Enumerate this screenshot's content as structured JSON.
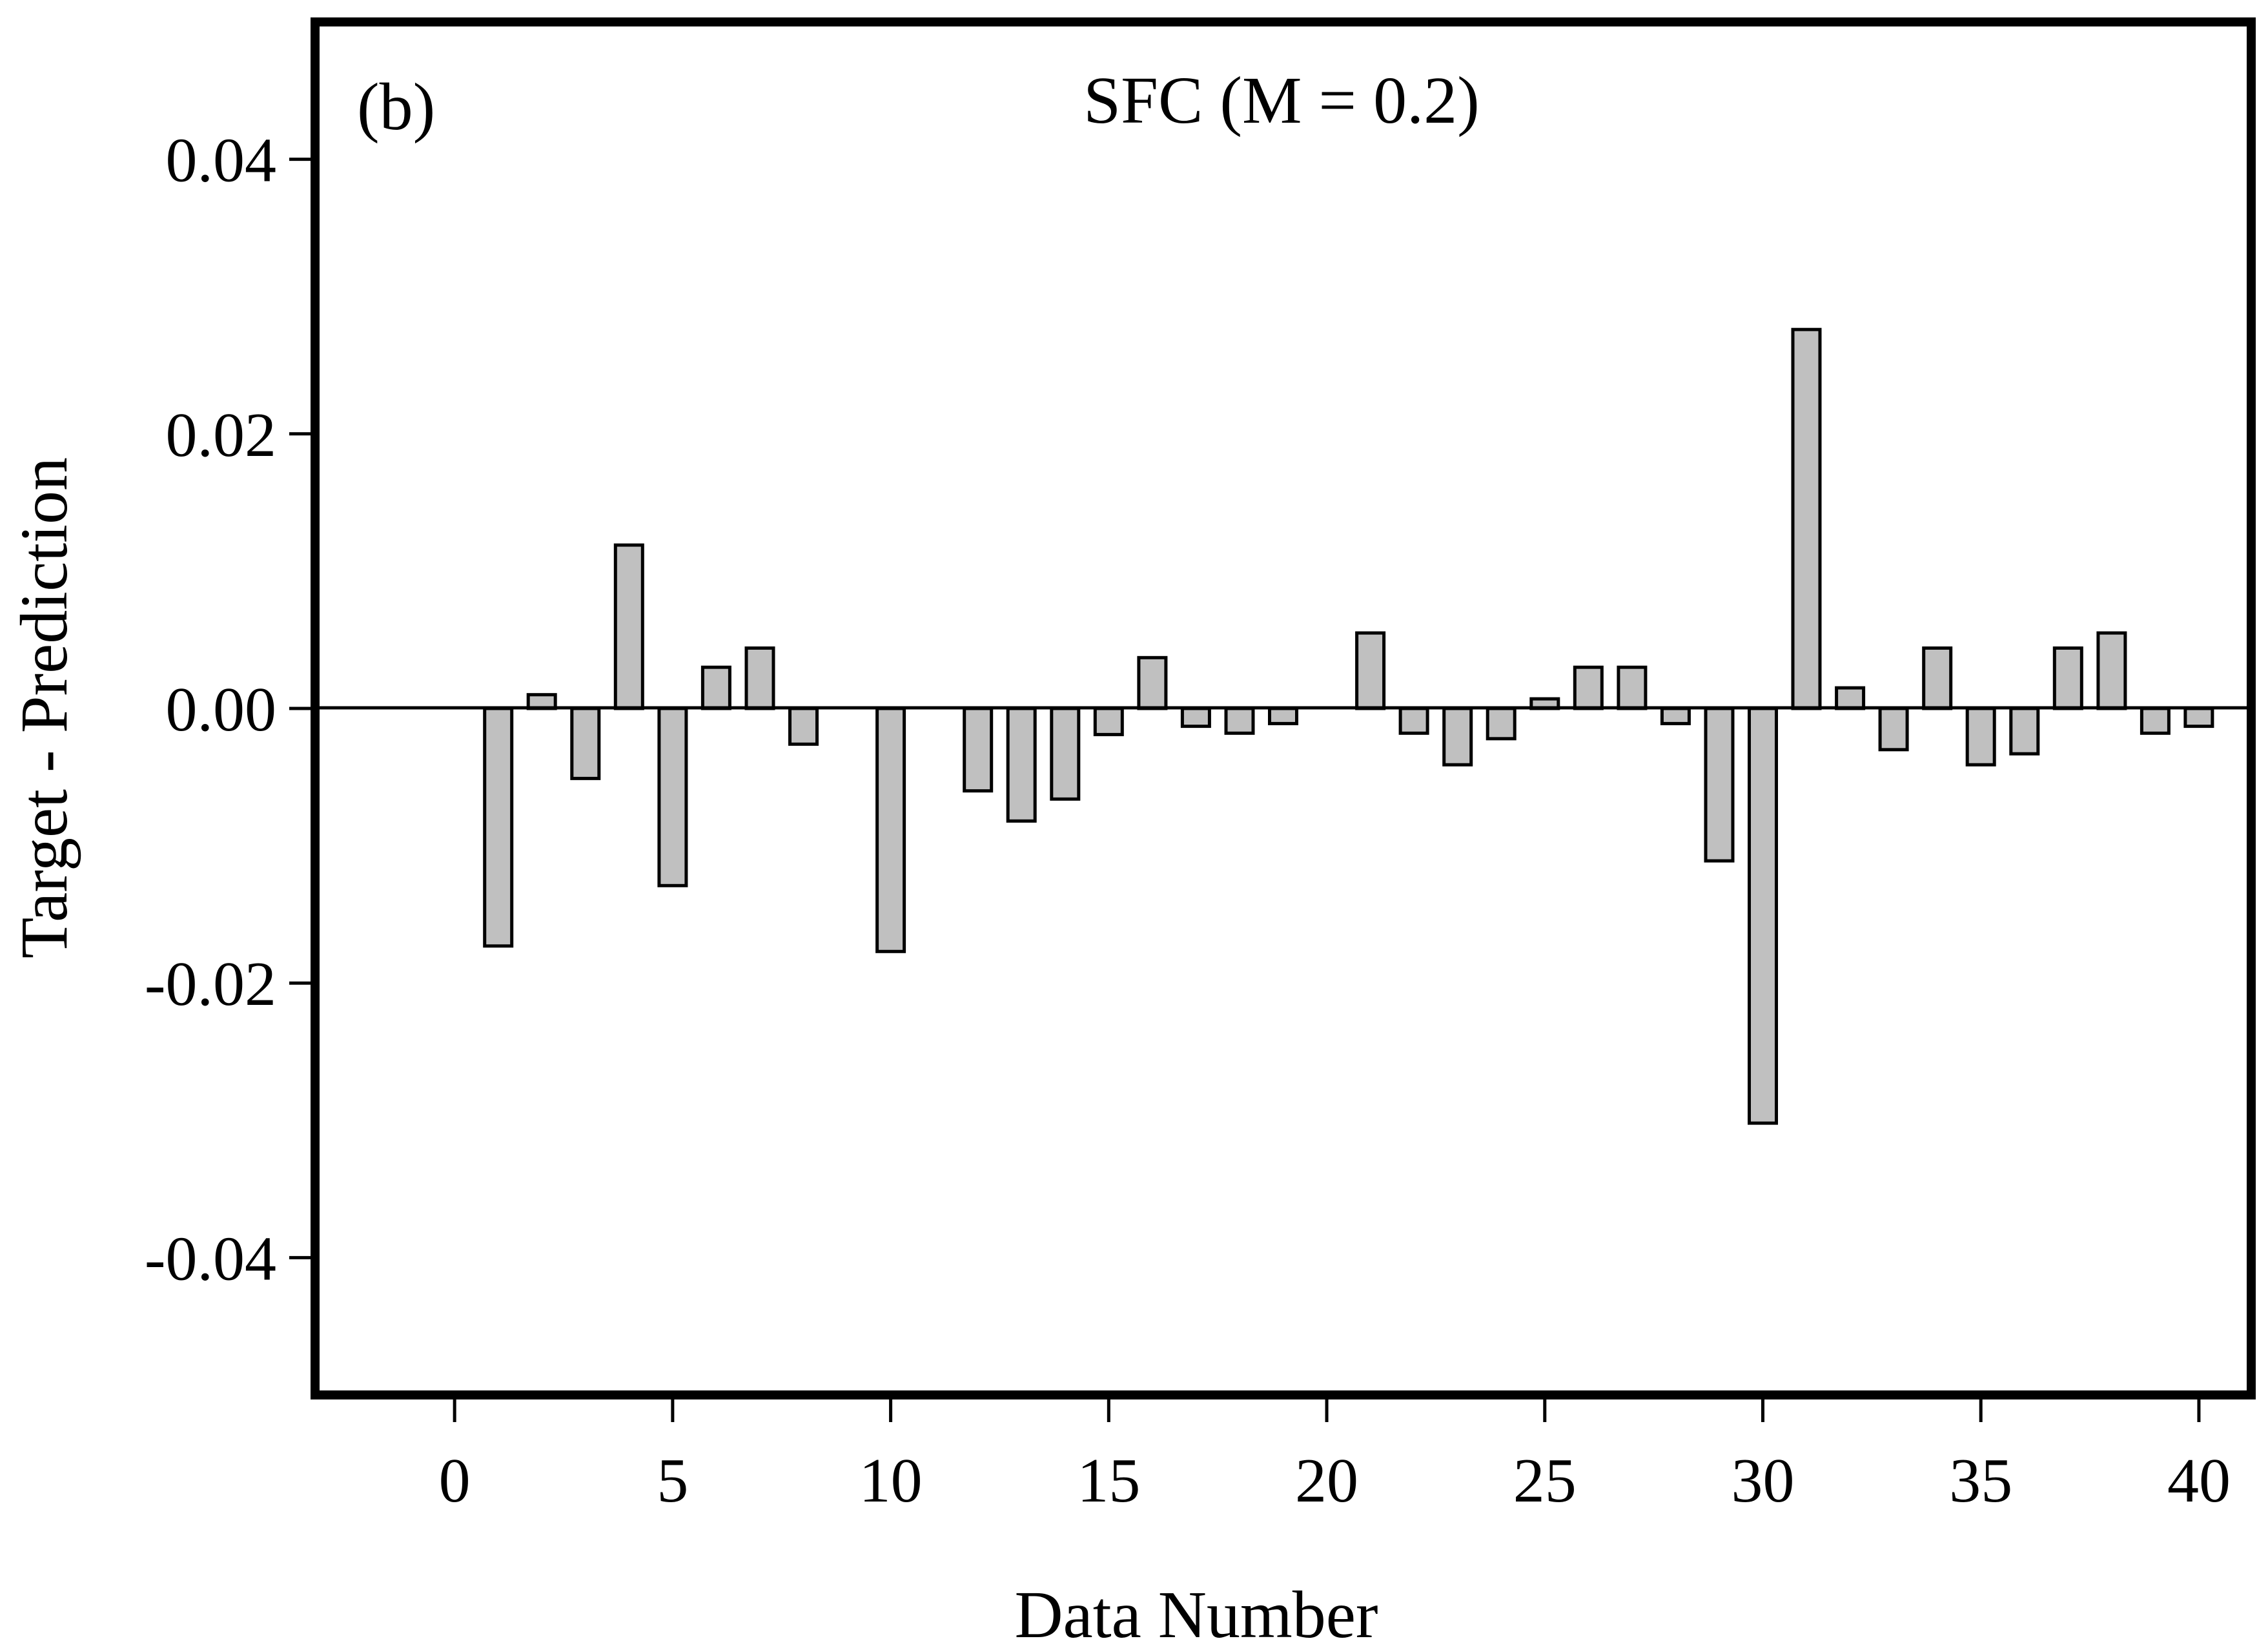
{
  "chart_data": {
    "type": "bar",
    "panel_label": "(b)",
    "title": "SFC (M = 0.2)",
    "xlabel": "Data Number",
    "ylabel": "Target - Prediction",
    "xlim": [
      -3.2,
      41.2
    ],
    "ylim": [
      -0.05,
      0.05
    ],
    "x_ticks": [
      0,
      5,
      10,
      15,
      20,
      25,
      30,
      35,
      40
    ],
    "x_tick_labels": [
      "0",
      "5",
      "10",
      "15",
      "20",
      "25",
      "30",
      "35",
      "40"
    ],
    "y_ticks": [
      0.04,
      0.02,
      0.0,
      -0.02,
      -0.04
    ],
    "y_tick_labels": [
      "0.04",
      "0.02",
      "0.00",
      "-0.02",
      "-0.04"
    ],
    "bar_color": "#c0c0c0",
    "bar_edge_color": "#000000",
    "zero_line": true,
    "grid": false,
    "x": [
      1,
      2,
      3,
      4,
      5,
      6,
      7,
      8,
      10,
      12,
      13,
      14,
      15,
      16,
      17,
      18,
      19,
      21,
      22,
      23,
      24,
      25,
      26,
      27,
      28,
      29,
      30,
      31,
      32,
      33,
      34,
      35,
      36,
      37,
      38,
      39,
      40
    ],
    "values": [
      -0.0173,
      0.001,
      -0.0051,
      0.0119,
      -0.0129,
      0.003,
      0.0044,
      -0.0026,
      -0.0177,
      -0.006,
      -0.0082,
      -0.0066,
      -0.0019,
      0.0037,
      -0.0013,
      -0.0018,
      -0.0011,
      0.0055,
      -0.0018,
      -0.0041,
      -0.0022,
      0.0007,
      0.003,
      0.003,
      -0.0011,
      -0.0111,
      -0.0302,
      0.0276,
      0.0015,
      -0.003,
      0.0044,
      -0.0041,
      -0.0033,
      0.0044,
      0.0055,
      -0.0018,
      -0.0013
    ]
  }
}
